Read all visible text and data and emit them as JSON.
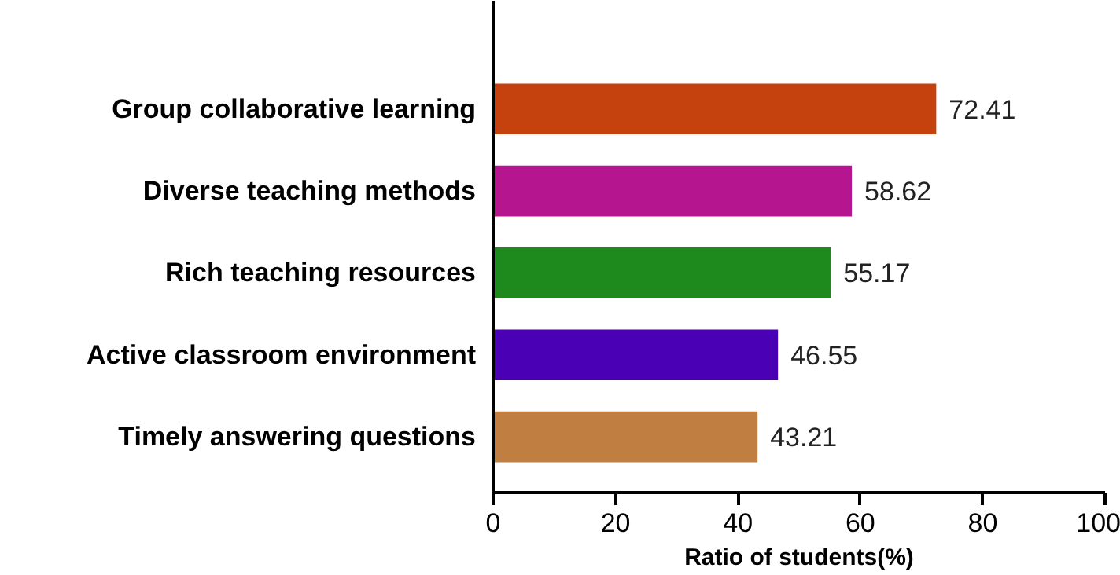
{
  "chart_data": {
    "type": "bar",
    "orientation": "horizontal",
    "xlabel": "Ratio of students(%)",
    "categories": [
      "Group collaborative learning",
      "Diverse teaching methods",
      "Rich teaching resources",
      "Active classroom environment",
      "Timely answering questions"
    ],
    "values": [
      72.41,
      58.62,
      55.17,
      46.55,
      43.21
    ],
    "colors": [
      "#c5410e",
      "#b5158f",
      "#1e8a1e",
      "#4a00b4",
      "#c07e40"
    ],
    "xlim": [
      0,
      100
    ],
    "xticks": [
      0,
      20,
      40,
      60,
      80,
      100
    ],
    "grid": false,
    "data_labels": true
  }
}
